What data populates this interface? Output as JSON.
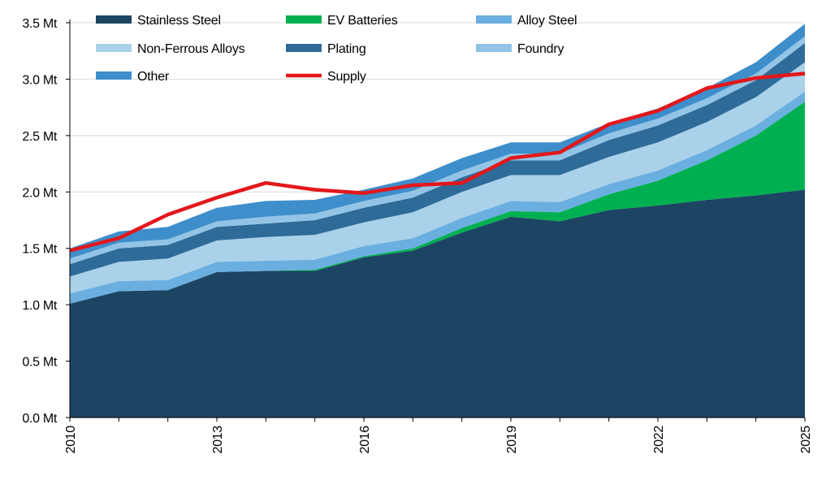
{
  "chart_data": {
    "type": "area",
    "title": "",
    "xlabel": "",
    "ylabel": "",
    "unit": "Mt",
    "x": [
      2010,
      2011,
      2012,
      2013,
      2014,
      2015,
      2016,
      2017,
      2018,
      2019,
      2020,
      2021,
      2022,
      2023,
      2024,
      2025
    ],
    "x_tick_labels": [
      "2010",
      "2013",
      "2016",
      "2019",
      "2022",
      "2025"
    ],
    "y_tick_labels": [
      "0.0 Mt",
      "0.5 Mt",
      "1.0 Mt",
      "1.5 Mt",
      "2.0 Mt",
      "2.5 Mt",
      "3.0 Mt",
      "3.5 Mt"
    ],
    "ylim": [
      0,
      3.5
    ],
    "grid": "horizontal",
    "stacked": true,
    "legend_position": "top",
    "series": [
      {
        "name": "Stainless Steel",
        "kind": "area",
        "color": "#1c4563",
        "values": [
          1.01,
          1.12,
          1.13,
          1.29,
          1.3,
          1.3,
          1.42,
          1.48,
          1.64,
          1.78,
          1.74,
          1.84,
          1.88,
          1.93,
          1.97,
          2.02
        ]
      },
      {
        "name": "EV Batteries",
        "kind": "area",
        "color": "#00b050",
        "values": [
          0.0,
          0.0,
          0.0,
          0.0,
          0.0,
          0.01,
          0.01,
          0.02,
          0.04,
          0.05,
          0.08,
          0.14,
          0.22,
          0.35,
          0.53,
          0.78
        ]
      },
      {
        "name": "Alloy Steel",
        "kind": "area",
        "color": "#6aafe0",
        "values": [
          0.09,
          0.09,
          0.09,
          0.09,
          0.09,
          0.09,
          0.09,
          0.09,
          0.09,
          0.09,
          0.09,
          0.09,
          0.09,
          0.09,
          0.09,
          0.09
        ]
      },
      {
        "name": "Non-Ferrous Alloys",
        "kind": "area",
        "color": "#a9d1ea",
        "values": [
          0.15,
          0.17,
          0.19,
          0.19,
          0.21,
          0.22,
          0.21,
          0.23,
          0.23,
          0.23,
          0.24,
          0.24,
          0.25,
          0.25,
          0.25,
          0.26
        ]
      },
      {
        "name": "Plating",
        "kind": "area",
        "color": "#2e6b98",
        "values": [
          0.11,
          0.12,
          0.12,
          0.12,
          0.12,
          0.13,
          0.13,
          0.13,
          0.13,
          0.13,
          0.13,
          0.15,
          0.15,
          0.15,
          0.15,
          0.17
        ]
      },
      {
        "name": "Foundry",
        "kind": "area",
        "color": "#93c4e6",
        "values": [
          0.05,
          0.05,
          0.05,
          0.05,
          0.06,
          0.06,
          0.06,
          0.06,
          0.06,
          0.06,
          0.06,
          0.06,
          0.06,
          0.06,
          0.06,
          0.06
        ]
      },
      {
        "name": "Other",
        "kind": "area",
        "color": "#3d8ecb",
        "values": [
          0.09,
          0.1,
          0.11,
          0.12,
          0.14,
          0.12,
          0.1,
          0.11,
          0.11,
          0.1,
          0.1,
          0.09,
          0.09,
          0.09,
          0.1,
          0.11
        ]
      },
      {
        "name": "Supply",
        "kind": "line",
        "color": "#e3171b",
        "values": [
          1.48,
          1.59,
          1.8,
          1.95,
          2.08,
          2.02,
          1.99,
          2.06,
          2.08,
          2.3,
          2.35,
          2.6,
          2.72,
          2.92,
          3.01,
          3.05
        ]
      }
    ]
  }
}
